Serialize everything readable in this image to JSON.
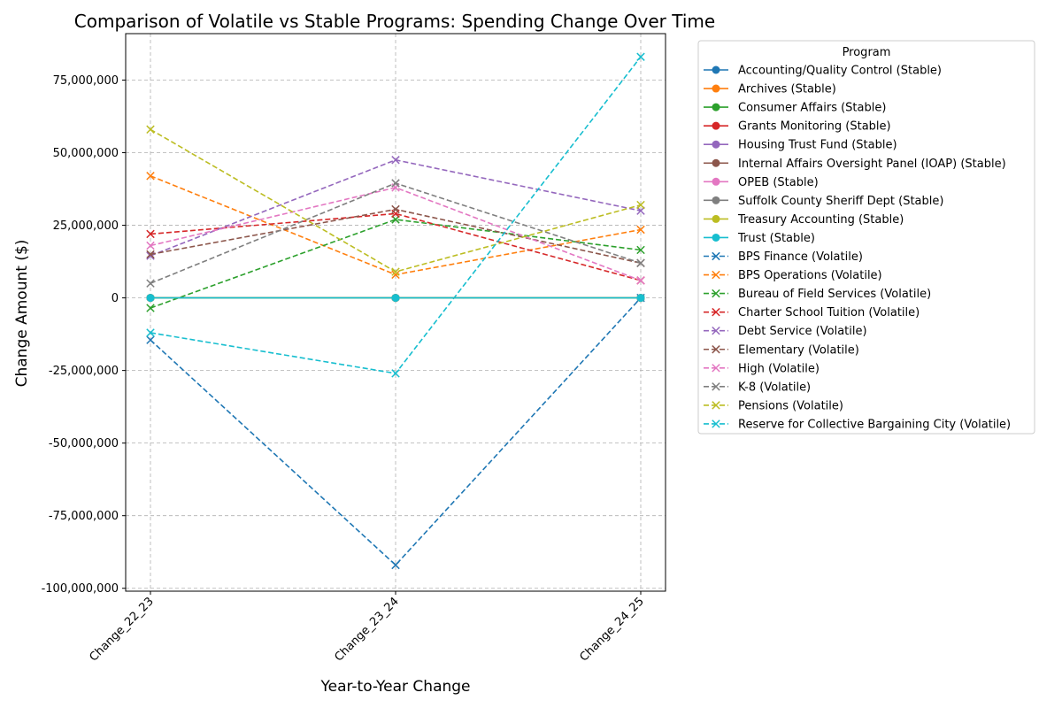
{
  "chart_data": {
    "type": "line",
    "title": "Comparison of Volatile vs Stable Programs: Spending Change Over Time",
    "xlabel": "Year-to-Year Change",
    "ylabel": "Change Amount ($)",
    "categories": [
      "Change_22_23",
      "Change_23_24",
      "Change_24_25"
    ],
    "ylim": [
      -101000000,
      91000000
    ],
    "yticks": [
      -100000000,
      -75000000,
      -50000000,
      -25000000,
      0,
      25000000,
      50000000,
      75000000
    ],
    "ytick_labels": [
      "-100,000,000",
      "-75,000,000",
      "-50,000,000",
      "-25,000,000",
      "0",
      "25,000,000",
      "50,000,000",
      "75,000,000"
    ],
    "grid": true,
    "legend_title": "Program",
    "legend_position": "outside-right-top",
    "series": [
      {
        "name": "Accounting/Quality Control (Stable)",
        "color": "#1f77b4",
        "style": "solid",
        "marker": "o",
        "values": [
          0,
          0,
          0
        ]
      },
      {
        "name": "Archives (Stable)",
        "color": "#ff7f0e",
        "style": "solid",
        "marker": "o",
        "values": [
          0,
          0,
          0
        ]
      },
      {
        "name": "Consumer Affairs (Stable)",
        "color": "#2ca02c",
        "style": "solid",
        "marker": "o",
        "values": [
          0,
          0,
          0
        ]
      },
      {
        "name": "Grants Monitoring (Stable)",
        "color": "#d62728",
        "style": "solid",
        "marker": "o",
        "values": [
          0,
          0,
          0
        ]
      },
      {
        "name": "Housing Trust Fund (Stable)",
        "color": "#9467bd",
        "style": "solid",
        "marker": "o",
        "values": [
          0,
          0,
          0
        ]
      },
      {
        "name": "Internal Affairs Oversight Panel (IOAP) (Stable)",
        "color": "#8c564b",
        "style": "solid",
        "marker": "o",
        "values": [
          0,
          0,
          0
        ]
      },
      {
        "name": "OPEB (Stable)",
        "color": "#e377c2",
        "style": "solid",
        "marker": "o",
        "values": [
          0,
          0,
          0
        ]
      },
      {
        "name": "Suffolk County Sheriff Dept (Stable)",
        "color": "#7f7f7f",
        "style": "solid",
        "marker": "o",
        "values": [
          0,
          0,
          0
        ]
      },
      {
        "name": "Treasury Accounting (Stable)",
        "color": "#bcbd22",
        "style": "solid",
        "marker": "o",
        "values": [
          0,
          0,
          0
        ]
      },
      {
        "name": "Trust (Stable)",
        "color": "#17becf",
        "style": "solid",
        "marker": "o",
        "values": [
          0,
          0,
          0
        ]
      },
      {
        "name": "BPS Finance (Volatile)",
        "color": "#1f77b4",
        "style": "dashed",
        "marker": "x",
        "values": [
          -14500000,
          -92000000,
          0
        ]
      },
      {
        "name": "BPS Operations (Volatile)",
        "color": "#ff7f0e",
        "style": "dashed",
        "marker": "x",
        "values": [
          42000000,
          8000000,
          23500000
        ]
      },
      {
        "name": "Bureau of Field Services (Volatile)",
        "color": "#2ca02c",
        "style": "dashed",
        "marker": "x",
        "values": [
          -3500000,
          27000000,
          16500000
        ]
      },
      {
        "name": "Charter School Tuition (Volatile)",
        "color": "#d62728",
        "style": "dashed",
        "marker": "x",
        "values": [
          22000000,
          29000000,
          6000000
        ]
      },
      {
        "name": "Debt Service (Volatile)",
        "color": "#9467bd",
        "style": "dashed",
        "marker": "x",
        "values": [
          14500000,
          47500000,
          30000000
        ]
      },
      {
        "name": "Elementary (Volatile)",
        "color": "#8c564b",
        "style": "dashed",
        "marker": "x",
        "values": [
          15000000,
          30500000,
          12000000
        ]
      },
      {
        "name": "High (Volatile)",
        "color": "#e377c2",
        "style": "dashed",
        "marker": "x",
        "values": [
          18000000,
          38000000,
          6000000
        ]
      },
      {
        "name": "K-8 (Volatile)",
        "color": "#7f7f7f",
        "style": "dashed",
        "marker": "x",
        "values": [
          5000000,
          39500000,
          12000000
        ]
      },
      {
        "name": "Pensions (Volatile)",
        "color": "#bcbd22",
        "style": "dashed",
        "marker": "x",
        "values": [
          58000000,
          9000000,
          32000000
        ]
      },
      {
        "name": "Reserve for Collective Bargaining City (Volatile)",
        "color": "#17becf",
        "style": "dashed",
        "marker": "x",
        "values": [
          -12000000,
          -26000000,
          83000000
        ]
      }
    ]
  }
}
